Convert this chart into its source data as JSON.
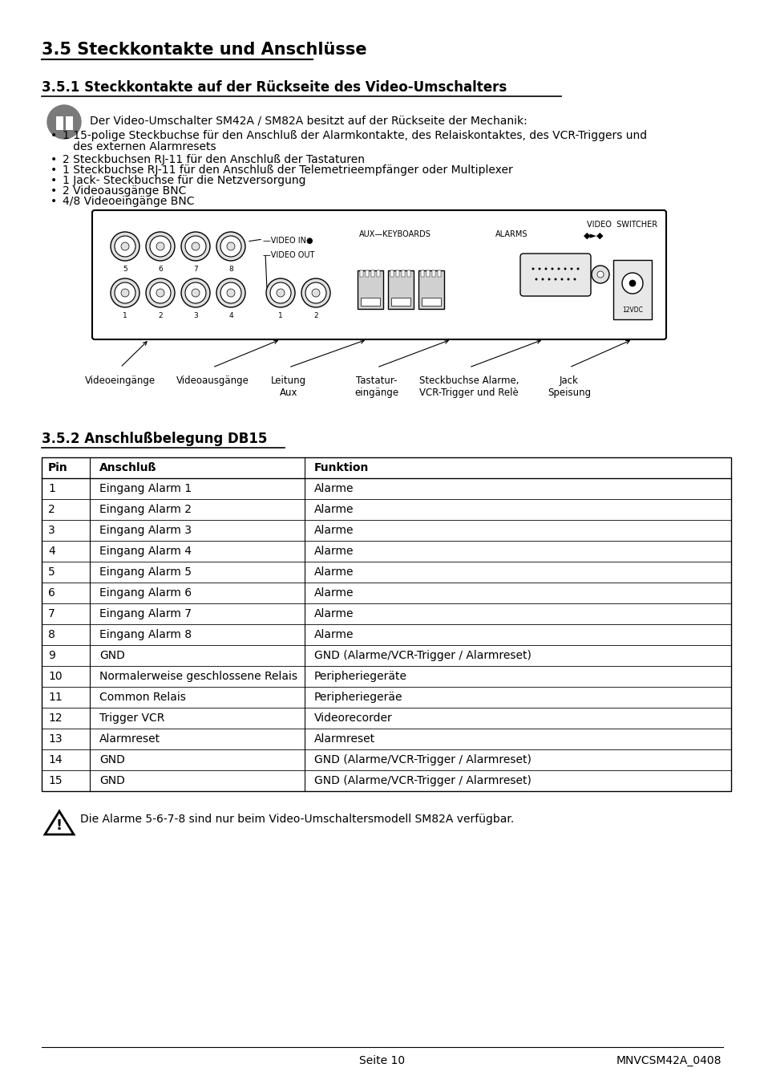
{
  "title_main": "3.5 Steckkontakte und Anschlüsse",
  "title_sub1": "3.5.1 Steckkontakte auf der Rückseite des Video-Umschalters",
  "title_sub2": "3.5.2 Anschlußbelegung DB15",
  "intro_text": "Der Video-Umschalter SM42A / SM82A besitzt auf der Rückseite der Mechanik:",
  "bullets": [
    "1 15-polige Steckbuchse für den Anschluß der Alarmkontakte, des Relaiskontaktes, des VCR-Triggers und",
    "   des externen Alarmresets",
    "2 Steckbuchsen RJ-11 für den Anschluß der Tastaturen",
    "1 Steckbuchse RJ-11 für den Anschluß der Telemetrieempfänger oder Multiplexer",
    "1 Jack- Steckbuchse für die Netzversorgung",
    "2 Videoausgänge BNC",
    "4/8 Videoeingänge BNC"
  ],
  "bullet_flags": [
    true,
    false,
    true,
    true,
    true,
    true,
    true
  ],
  "table_headers": [
    "Pin",
    "Anschluß",
    "Funktion"
  ],
  "table_rows": [
    [
      "1",
      "Eingang Alarm 1",
      "Alarme"
    ],
    [
      "2",
      "Eingang Alarm 2",
      "Alarme"
    ],
    [
      "3",
      "Eingang Alarm 3",
      "Alarme"
    ],
    [
      "4",
      "Eingang Alarm 4",
      "Alarme"
    ],
    [
      "5",
      "Eingang Alarm 5",
      "Alarme"
    ],
    [
      "6",
      "Eingang Alarm 6",
      "Alarme"
    ],
    [
      "7",
      "Eingang Alarm 7",
      "Alarme"
    ],
    [
      "8",
      "Eingang Alarm 8",
      "Alarme"
    ],
    [
      "9",
      "GND",
      "GND (Alarme/VCR-Trigger / Alarmreset)"
    ],
    [
      "10",
      "Normalerweise geschlossene Relais",
      "Peripheriegeräte"
    ],
    [
      "11",
      "Common Relais",
      "Peripheriegeräe"
    ],
    [
      "12",
      "Trigger VCR",
      "Videorecorder"
    ],
    [
      "13",
      "Alarmreset",
      "Alarmreset"
    ],
    [
      "14",
      "GND",
      "GND (Alarme/VCR-Trigger / Alarmreset)"
    ],
    [
      "15",
      "GND",
      "GND (Alarme/VCR-Trigger / Alarmreset)"
    ]
  ],
  "warning_text": "Die Alarme 5-6-7-8 sind nur beim Video-Umschaltersmodell SM82A verfügbar.",
  "footer_left": "Seite 10",
  "footer_right": "MNVCSM42A_0408",
  "bg_color": "#ffffff",
  "text_color": "#000000"
}
